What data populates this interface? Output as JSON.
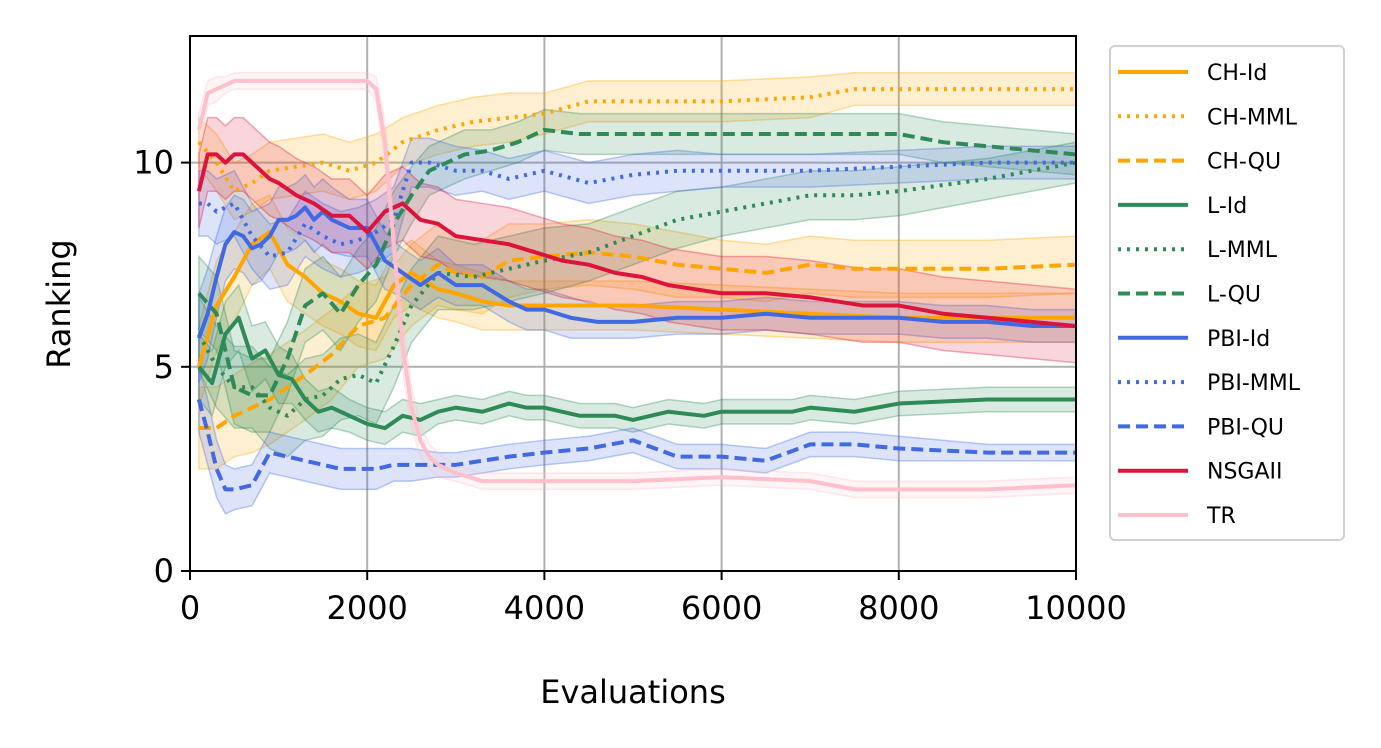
{
  "chart_data": {
    "type": "line",
    "title": "",
    "xlabel": "Evaluations",
    "ylabel": "Ranking",
    "xlim": [
      0,
      10000
    ],
    "ylim": [
      0,
      13.1
    ],
    "xticks": [
      0,
      2000,
      4000,
      6000,
      8000,
      10000
    ],
    "yticks": [
      0,
      5,
      10
    ],
    "grid": true,
    "legend_position": "outside-right",
    "series": [
      {
        "name": "CH-Id",
        "color": "#FFA500",
        "dash": "solid",
        "x": [
          100,
          300,
          500,
          700,
          900,
          1100,
          1300,
          1500,
          1700,
          1900,
          2100,
          2300,
          2500,
          2800,
          3000,
          3300,
          3600,
          4000,
          4500,
          5000,
          6000,
          7000,
          8000,
          9000,
          10000
        ],
        "y": [
          5.0,
          6.5,
          7.2,
          8.0,
          8.3,
          7.5,
          7.2,
          6.8,
          6.6,
          6.3,
          6.2,
          7.0,
          7.3,
          6.9,
          6.8,
          6.6,
          6.5,
          6.5,
          6.5,
          6.5,
          6.4,
          6.3,
          6.2,
          6.2,
          6.2
        ],
        "band": [
          1.0,
          1.1,
          1.1,
          1.0,
          0.9,
          0.9,
          0.9,
          0.8,
          0.8,
          0.8,
          0.8,
          0.8,
          0.8,
          0.7,
          0.7,
          0.7,
          0.6,
          0.6,
          0.6,
          0.6,
          0.6,
          0.6,
          0.6,
          0.6,
          0.6
        ]
      },
      {
        "name": "CH-MML",
        "color": "#FFA500",
        "dash": "dotted",
        "x": [
          100,
          300,
          500,
          700,
          900,
          1200,
          1500,
          1800,
          2100,
          2400,
          2800,
          3200,
          3600,
          4000,
          4500,
          5000,
          6000,
          7000,
          7500,
          8000,
          9000,
          9500,
          10000
        ],
        "y": [
          10.5,
          10.0,
          9.3,
          9.5,
          9.8,
          9.9,
          10.0,
          9.8,
          10.0,
          10.5,
          10.8,
          11.0,
          11.1,
          11.2,
          11.5,
          11.5,
          11.5,
          11.6,
          11.8,
          11.8,
          11.8,
          11.8,
          11.8
        ],
        "band": [
          0.6,
          0.7,
          0.7,
          0.7,
          0.7,
          0.7,
          0.7,
          0.7,
          0.7,
          0.6,
          0.6,
          0.6,
          0.6,
          0.5,
          0.5,
          0.5,
          0.5,
          0.5,
          0.4,
          0.4,
          0.4,
          0.4,
          0.4
        ]
      },
      {
        "name": "CH-QU",
        "color": "#FFA500",
        "dash": "dashed",
        "x": [
          100,
          300,
          500,
          700,
          900,
          1100,
          1300,
          1600,
          1900,
          2200,
          2500,
          2800,
          3000,
          3300,
          3600,
          4000,
          4500,
          5000,
          5500,
          6000,
          6500,
          7000,
          7500,
          8000,
          9000,
          10000
        ],
        "y": [
          3.5,
          3.5,
          3.8,
          4.0,
          4.2,
          4.5,
          4.8,
          5.3,
          6.0,
          6.2,
          7.0,
          7.5,
          7.3,
          7.2,
          7.6,
          7.7,
          7.8,
          7.7,
          7.5,
          7.4,
          7.3,
          7.5,
          7.4,
          7.4,
          7.4,
          7.5
        ],
        "band": [
          1.0,
          1.0,
          1.0,
          1.1,
          1.1,
          1.1,
          1.1,
          1.1,
          1.0,
          1.0,
          1.0,
          1.0,
          0.9,
          0.9,
          0.9,
          0.8,
          0.8,
          0.8,
          0.8,
          0.7,
          0.7,
          0.7,
          0.7,
          0.7,
          0.7,
          0.7
        ]
      },
      {
        "name": "L-Id",
        "color": "#2E8B57",
        "dash": "solid",
        "x": [
          100,
          250,
          400,
          550,
          700,
          850,
          1000,
          1150,
          1300,
          1450,
          1600,
          1800,
          2000,
          2200,
          2400,
          2600,
          2800,
          3000,
          3300,
          3600,
          3800,
          4000,
          4400,
          4800,
          5000,
          5400,
          5800,
          6000,
          6400,
          6800,
          7000,
          7500,
          8000,
          9000,
          10000
        ],
        "y": [
          5.0,
          4.6,
          5.8,
          6.2,
          5.2,
          5.4,
          4.8,
          4.7,
          4.2,
          3.9,
          4.0,
          3.8,
          3.6,
          3.5,
          3.8,
          3.7,
          3.9,
          4.0,
          3.9,
          4.1,
          4.0,
          4.0,
          3.8,
          3.8,
          3.7,
          3.9,
          3.8,
          3.9,
          3.9,
          3.9,
          4.0,
          3.9,
          4.1,
          4.2,
          4.2
        ],
        "band": [
          0.8,
          0.8,
          0.8,
          0.8,
          0.8,
          0.7,
          0.7,
          0.6,
          0.5,
          0.5,
          0.5,
          0.4,
          0.4,
          0.4,
          0.4,
          0.4,
          0.3,
          0.3,
          0.3,
          0.3,
          0.3,
          0.3,
          0.3,
          0.3,
          0.3,
          0.3,
          0.3,
          0.3,
          0.3,
          0.3,
          0.3,
          0.3,
          0.3,
          0.3,
          0.3
        ]
      },
      {
        "name": "L-MML",
        "color": "#2E8B57",
        "dash": "dotted",
        "x": [
          100,
          300,
          500,
          700,
          900,
          1100,
          1300,
          1500,
          1700,
          1900,
          2100,
          2300,
          2500,
          2800,
          3200,
          3600,
          4000,
          4500,
          5000,
          5500,
          6000,
          6500,
          7000,
          7500,
          8000,
          9000,
          10000
        ],
        "y": [
          5.8,
          5.0,
          4.5,
          4.5,
          4.0,
          3.8,
          4.2,
          4.3,
          4.7,
          4.8,
          4.6,
          5.5,
          6.5,
          7.3,
          7.2,
          7.4,
          7.6,
          7.8,
          8.2,
          8.6,
          8.8,
          9.0,
          9.2,
          9.2,
          9.3,
          9.6,
          10.0
        ],
        "band": [
          0.9,
          1.0,
          1.0,
          1.0,
          1.0,
          1.0,
          1.0,
          1.0,
          1.0,
          1.0,
          1.0,
          1.0,
          0.9,
          0.9,
          0.8,
          0.8,
          0.8,
          0.7,
          0.7,
          0.7,
          0.6,
          0.6,
          0.6,
          0.6,
          0.6,
          0.5,
          0.5
        ],
        "x_end": 10000
      },
      {
        "name": "L-QU",
        "color": "#2E8B57",
        "dash": "dashed",
        "x": [
          100,
          300,
          500,
          700,
          900,
          1100,
          1300,
          1500,
          1700,
          1900,
          2100,
          2300,
          2500,
          2700,
          2900,
          3100,
          3400,
          3700,
          4000,
          4400,
          4800,
          5200,
          5600,
          6000,
          6500,
          7000,
          7500,
          8000,
          8500,
          9000,
          9500,
          10000
        ],
        "y": [
          6.8,
          6.3,
          4.5,
          4.3,
          4.3,
          5.2,
          6.5,
          6.8,
          6.3,
          7.0,
          7.5,
          8.5,
          9.2,
          9.8,
          10.0,
          10.2,
          10.3,
          10.5,
          10.8,
          10.7,
          10.7,
          10.7,
          10.7,
          10.7,
          10.7,
          10.7,
          10.7,
          10.7,
          10.5,
          10.4,
          10.3,
          10.2
        ],
        "band": [
          0.9,
          0.9,
          0.9,
          0.9,
          0.9,
          0.9,
          0.9,
          0.9,
          0.9,
          0.9,
          0.9,
          0.8,
          0.7,
          0.6,
          0.6,
          0.6,
          0.5,
          0.5,
          0.5,
          0.5,
          0.5,
          0.5,
          0.5,
          0.5,
          0.5,
          0.5,
          0.5,
          0.5,
          0.5,
          0.5,
          0.5,
          0.5
        ]
      },
      {
        "name": "PBI-Id",
        "color": "#4169E1",
        "dash": "solid",
        "x": [
          100,
          200,
          300,
          400,
          500,
          600,
          700,
          800,
          900,
          1000,
          1100,
          1200,
          1300,
          1400,
          1500,
          1600,
          1800,
          2000,
          2200,
          2400,
          2600,
          2800,
          3000,
          3300,
          3600,
          3800,
          4000,
          4300,
          4600,
          5000,
          5500,
          6000,
          6500,
          7000,
          7500,
          8000,
          8500,
          9000,
          9500,
          10000
        ],
        "y": [
          5.7,
          6.3,
          7.2,
          8.0,
          8.3,
          8.2,
          7.9,
          8.0,
          8.2,
          8.6,
          8.6,
          8.7,
          8.9,
          8.6,
          8.8,
          8.6,
          8.4,
          8.4,
          7.6,
          7.3,
          7.0,
          7.3,
          7.0,
          7.0,
          6.6,
          6.4,
          6.4,
          6.2,
          6.1,
          6.1,
          6.2,
          6.2,
          6.3,
          6.2,
          6.2,
          6.2,
          6.1,
          6.1,
          6.0,
          6.0
        ],
        "band": [
          1.1,
          1.1,
          1.0,
          0.9,
          0.9,
          0.9,
          0.9,
          0.9,
          0.8,
          0.8,
          0.8,
          0.8,
          0.8,
          0.8,
          0.8,
          0.8,
          0.7,
          0.7,
          0.7,
          0.6,
          0.6,
          0.6,
          0.5,
          0.5,
          0.5,
          0.5,
          0.5,
          0.5,
          0.4,
          0.4,
          0.4,
          0.4,
          0.4,
          0.4,
          0.4,
          0.4,
          0.4,
          0.4,
          0.4,
          0.4
        ]
      },
      {
        "name": "PBI-MML",
        "color": "#4169E1",
        "dash": "dotted",
        "x": [
          100,
          200,
          300,
          500,
          700,
          900,
          1100,
          1300,
          1500,
          1700,
          1900,
          2100,
          2300,
          2500,
          2700,
          3000,
          3300,
          3600,
          4000,
          4500,
          5000,
          5500,
          6000,
          7000,
          8000,
          9000,
          10000
        ],
        "y": [
          9.0,
          9.0,
          8.8,
          9.0,
          8.2,
          7.7,
          7.8,
          8.5,
          8.2,
          8.0,
          8.1,
          8.3,
          8.6,
          10.0,
          10.0,
          9.8,
          9.8,
          9.6,
          9.8,
          9.5,
          9.7,
          9.8,
          9.8,
          9.8,
          9.9,
          10.0,
          10.0
        ],
        "band": [
          0.8,
          0.8,
          0.8,
          0.8,
          0.8,
          0.8,
          0.8,
          0.8,
          0.8,
          0.8,
          0.8,
          0.8,
          0.8,
          0.6,
          0.6,
          0.6,
          0.5,
          0.5,
          0.5,
          0.5,
          0.5,
          0.5,
          0.4,
          0.4,
          0.4,
          0.4,
          0.4
        ]
      },
      {
        "name": "PBI-QU",
        "color": "#4169E1",
        "dash": "dashed",
        "x": [
          100,
          200,
          300,
          400,
          500,
          700,
          900,
          1100,
          1300,
          1500,
          1700,
          1900,
          2100,
          2300,
          2500,
          2800,
          3000,
          3300,
          3600,
          4000,
          4500,
          5000,
          5500,
          6000,
          6500,
          7000,
          7500,
          8000,
          9000,
          10000
        ],
        "y": [
          4.2,
          3.4,
          2.5,
          2.0,
          2.0,
          2.1,
          2.9,
          2.8,
          2.7,
          2.6,
          2.5,
          2.5,
          2.5,
          2.6,
          2.6,
          2.6,
          2.6,
          2.7,
          2.8,
          2.9,
          3.0,
          3.2,
          2.8,
          2.8,
          2.7,
          3.1,
          3.1,
          3.0,
          2.9,
          2.9
        ],
        "band": [
          0.8,
          0.8,
          0.7,
          0.6,
          0.5,
          0.5,
          0.5,
          0.5,
          0.5,
          0.5,
          0.5,
          0.5,
          0.5,
          0.4,
          0.4,
          0.3,
          0.3,
          0.3,
          0.3,
          0.3,
          0.3,
          0.3,
          0.3,
          0.3,
          0.3,
          0.3,
          0.3,
          0.3,
          0.2,
          0.2
        ]
      },
      {
        "name": "NSGAII",
        "color": "#DC143C",
        "dash": "solid",
        "x": [
          100,
          200,
          300,
          400,
          500,
          600,
          700,
          800,
          900,
          1000,
          1200,
          1400,
          1600,
          1800,
          2000,
          2200,
          2400,
          2600,
          2800,
          3000,
          3300,
          3600,
          3900,
          4200,
          4500,
          4800,
          5100,
          5400,
          5700,
          6000,
          6500,
          7000,
          7300,
          7600,
          8000,
          8500,
          9000,
          9500,
          10000
        ],
        "y": [
          9.3,
          10.2,
          10.2,
          10.0,
          10.2,
          10.2,
          10.0,
          9.8,
          9.6,
          9.5,
          9.2,
          9.0,
          8.7,
          8.7,
          8.3,
          8.8,
          9.0,
          8.6,
          8.5,
          8.2,
          8.1,
          8.0,
          7.8,
          7.6,
          7.5,
          7.3,
          7.2,
          7.0,
          6.9,
          6.8,
          6.8,
          6.7,
          6.6,
          6.5,
          6.5,
          6.3,
          6.2,
          6.1,
          6.0
        ],
        "band": [
          0.9,
          0.9,
          0.9,
          0.9,
          0.9,
          0.9,
          0.9,
          0.9,
          0.9,
          0.9,
          0.9,
          0.9,
          0.9,
          0.9,
          0.9,
          0.9,
          0.9,
          0.9,
          0.9,
          0.9,
          0.9,
          0.9,
          0.9,
          0.9,
          0.9,
          0.9,
          0.9,
          0.9,
          0.9,
          0.9,
          0.9,
          0.9,
          0.9,
          0.9,
          0.9,
          0.9,
          0.9,
          0.9,
          0.9
        ]
      },
      {
        "name": "TR",
        "color": "#FFC0CB",
        "dash": "solid",
        "x": [
          100,
          200,
          300,
          400,
          500,
          700,
          1000,
          1500,
          2000,
          2100,
          2200,
          2300,
          2400,
          2500,
          2600,
          2700,
          2800,
          3000,
          3300,
          3600,
          4000,
          4500,
          5000,
          6000,
          7000,
          7500,
          8000,
          9000,
          10000
        ],
        "y": [
          10.8,
          11.7,
          11.8,
          11.9,
          12.0,
          12.0,
          12.0,
          12.0,
          12.0,
          11.8,
          10.5,
          8.0,
          5.5,
          4.0,
          3.2,
          2.8,
          2.6,
          2.4,
          2.2,
          2.2,
          2.2,
          2.2,
          2.2,
          2.3,
          2.2,
          2.0,
          2.0,
          2.0,
          2.1
        ],
        "band": [
          0.4,
          0.3,
          0.3,
          0.2,
          0.2,
          0.2,
          0.2,
          0.2,
          0.2,
          0.3,
          0.5,
          0.6,
          0.6,
          0.5,
          0.4,
          0.3,
          0.3,
          0.2,
          0.2,
          0.2,
          0.2,
          0.2,
          0.2,
          0.2,
          0.2,
          0.2,
          0.2,
          0.2,
          0.2
        ]
      }
    ]
  }
}
